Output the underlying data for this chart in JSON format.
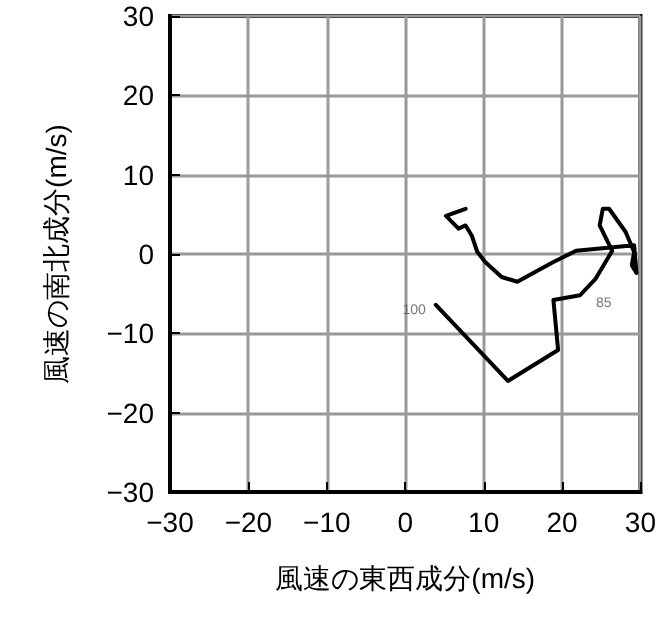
{
  "chart_data": {
    "type": "line",
    "xlabel": "風速の東西成分(m/s)",
    "ylabel": "風速の南北成分(m/s)",
    "xlim": [
      -30,
      30
    ],
    "ylim": [
      -30,
      30
    ],
    "xticks": [
      -30,
      -20,
      -10,
      0,
      10,
      20,
      30
    ],
    "yticks": [
      -30,
      -20,
      -10,
      0,
      10,
      20,
      30
    ],
    "grid": true,
    "marker": "none",
    "line_style": "solid",
    "series": [
      {
        "color": "#000000",
        "x": [
          3.9,
          13.1,
          19.5,
          18.9,
          22.3,
          24.3,
          26.4,
          24.8,
          25.2,
          26.0,
          28.1,
          29.2,
          28.9,
          29.5,
          29.2,
          21.8,
          18.9,
          14.3,
          12.3,
          10.2,
          9.2,
          8.5,
          7.7,
          6.8,
          5.2,
          7.7
        ],
        "values": [
          -6.4,
          -16.0,
          -12.1,
          -5.8,
          -5.2,
          -3.1,
          0.4,
          3.6,
          5.7,
          5.7,
          2.8,
          0.25,
          -1.4,
          -2.4,
          1.1,
          0.4,
          -1.0,
          -3.5,
          -2.9,
          -1.0,
          0.25,
          2.3,
          3.6,
          3.2,
          4.8,
          5.7
        ]
      }
    ],
    "annotations": [
      {
        "text": "100",
        "x": 3.9,
        "y": -6.4
      },
      {
        "text": "85",
        "x": 24.3,
        "y": -3.1
      }
    ]
  }
}
